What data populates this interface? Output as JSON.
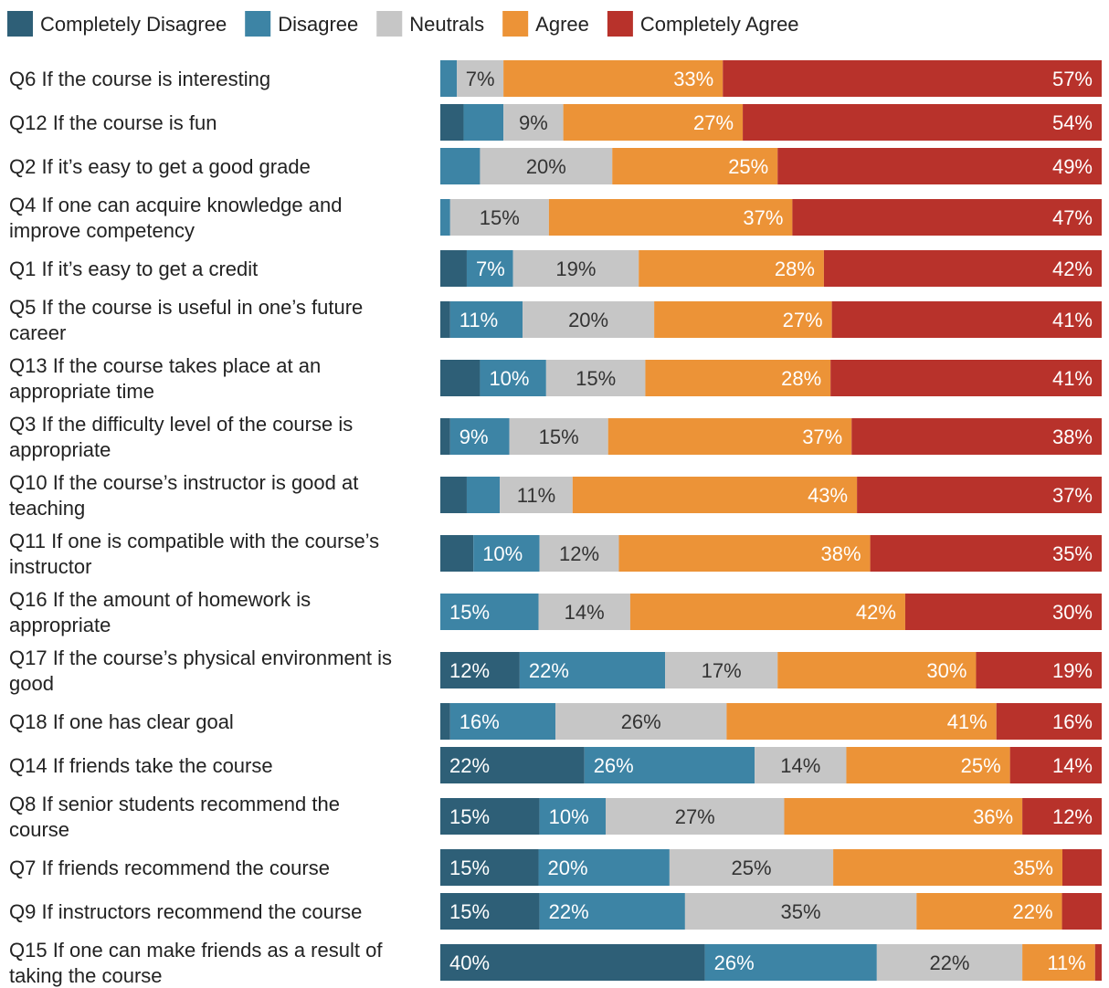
{
  "chart_data": {
    "type": "bar",
    "orientation": "horizontal",
    "stacked": true,
    "legend_position": "top-left",
    "grid": false,
    "xlim": [
      0,
      100
    ],
    "unit": "%",
    "series": [
      {
        "name": "Completely Disagree",
        "color": "#2e5f77"
      },
      {
        "name": "Disagree",
        "color": "#3d84a5"
      },
      {
        "name": "Neutrals",
        "color": "#c6c6c6"
      },
      {
        "name": "Agree",
        "color": "#ec9337"
      },
      {
        "name": "Completely Agree",
        "color": "#b8322b"
      }
    ],
    "rows": [
      {
        "label": [
          "Q6 If the course is interesting"
        ],
        "values": [
          0,
          2.5,
          7,
          33,
          57
        ],
        "shown": [
          "",
          "",
          "7%",
          "33%",
          "57%"
        ]
      },
      {
        "label": [
          "Q12 If the course is fun"
        ],
        "values": [
          3.5,
          6,
          9,
          27,
          54
        ],
        "shown": [
          "",
          "",
          "9%",
          "27%",
          "54%"
        ]
      },
      {
        "label": [
          "Q2 If it’s easy to get a good grade"
        ],
        "values": [
          0,
          6,
          20,
          25,
          49
        ],
        "shown": [
          "",
          "",
          "20%",
          "25%",
          "49%"
        ]
      },
      {
        "label": [
          "Q4 If one can acquire knowledge and",
          "improve competency"
        ],
        "values": [
          0,
          1.5,
          15,
          37,
          47
        ],
        "shown": [
          "",
          "",
          "15%",
          "37%",
          "47%"
        ]
      },
      {
        "label": [
          "Q1 If it’s easy to get a credit"
        ],
        "values": [
          4,
          7,
          19,
          28,
          42
        ],
        "shown": [
          "",
          "7%",
          "19%",
          "28%",
          "42%"
        ]
      },
      {
        "label": [
          "Q5 If the course is useful in one’s future",
          "career"
        ],
        "values": [
          1.5,
          11,
          20,
          27,
          41
        ],
        "shown": [
          "",
          "11%",
          "20%",
          "27%",
          "41%"
        ]
      },
      {
        "label": [
          "Q13 If the course takes place at an",
          "appropriate time"
        ],
        "values": [
          6,
          10,
          15,
          28,
          41
        ],
        "shown": [
          "",
          "10%",
          "15%",
          "28%",
          "41%"
        ]
      },
      {
        "label": [
          "Q3 If the difficulty level of the course is",
          "appropriate"
        ],
        "values": [
          1.5,
          9,
          15,
          37,
          38
        ],
        "shown": [
          "",
          "9%",
          "15%",
          "37%",
          "38%"
        ]
      },
      {
        "label": [
          "Q10 If the course’s instructor is good at",
          "teaching"
        ],
        "values": [
          4,
          5,
          11,
          43,
          37
        ],
        "shown": [
          "",
          "",
          "11%",
          "43%",
          "37%"
        ]
      },
      {
        "label": [
          "Q11 If one is compatible with the course’s",
          "instructor"
        ],
        "values": [
          5,
          10,
          12,
          38,
          35
        ],
        "shown": [
          "",
          "10%",
          "12%",
          "38%",
          "35%"
        ]
      },
      {
        "label": [
          "Q16 If the amount of homework is",
          "appropriate"
        ],
        "values": [
          0,
          15,
          14,
          42,
          30
        ],
        "shown": [
          "",
          "15%",
          "14%",
          "42%",
          "30%"
        ]
      },
      {
        "label": [
          "Q17 If the course’s physical environment is",
          "good"
        ],
        "values": [
          12,
          22,
          17,
          30,
          19
        ],
        "shown": [
          "12%",
          "22%",
          "17%",
          "30%",
          "19%"
        ]
      },
      {
        "label": [
          "Q18 If one has clear goal"
        ],
        "values": [
          1.5,
          16,
          26,
          41,
          16
        ],
        "shown": [
          "",
          "16%",
          "26%",
          "41%",
          "16%"
        ]
      },
      {
        "label": [
          "Q14 If friends take the course"
        ],
        "values": [
          22,
          26,
          14,
          25,
          14
        ],
        "shown": [
          "22%",
          "26%",
          "14%",
          "25%",
          "14%"
        ]
      },
      {
        "label": [
          "Q8 If senior students recommend the",
          "course"
        ],
        "values": [
          15,
          10,
          27,
          36,
          12
        ],
        "shown": [
          "15%",
          "10%",
          "27%",
          "36%",
          "12%"
        ]
      },
      {
        "label": [
          "Q7 If friends recommend the course"
        ],
        "values": [
          15,
          20,
          25,
          35,
          6
        ],
        "shown": [
          "15%",
          "20%",
          "25%",
          "35%",
          ""
        ]
      },
      {
        "label": [
          "Q9 If instructors recommend the course"
        ],
        "values": [
          15,
          22,
          35,
          22,
          6
        ],
        "shown": [
          "15%",
          "22%",
          "35%",
          "22%",
          ""
        ]
      },
      {
        "label": [
          "Q15 If one can make friends as a result of",
          "taking the course"
        ],
        "values": [
          40,
          26,
          22,
          11,
          1
        ],
        "shown": [
          "40%",
          "26%",
          "22%",
          "11%",
          ""
        ]
      }
    ]
  }
}
